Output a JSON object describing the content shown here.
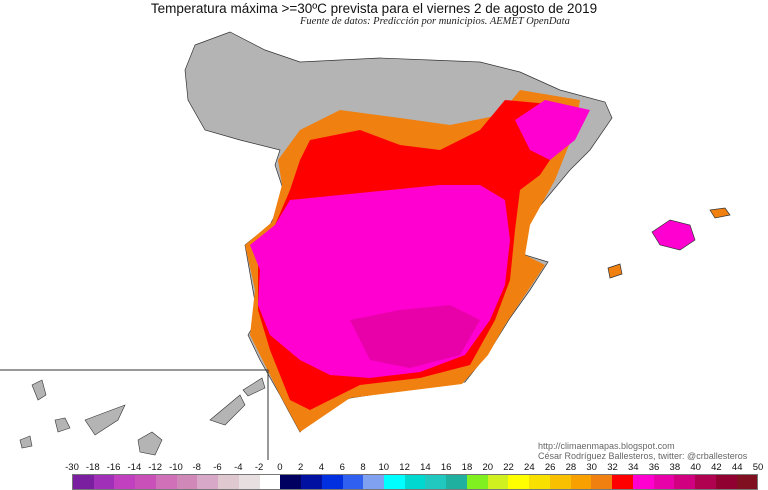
{
  "title": "Temperatura máxima >=30ºC prevista para el viernes 2 de agosto de 2019",
  "subtitle": "Fuente de datos: Predicción por municipios. AEMET OpenData",
  "credits": {
    "url": "http://climaenmapas.blogspot.com",
    "author": "César Rodríguez Ballesteros, twitter: @crballesteros"
  },
  "legend": {
    "labels": [
      "-30",
      "-18",
      "-16",
      "-14",
      "-12",
      "-10",
      "-8",
      "-6",
      "-4",
      "-2",
      "0",
      "2",
      "4",
      "6",
      "8",
      "10",
      "12",
      "14",
      "16",
      "18",
      "20",
      "22",
      "24",
      "26",
      "28",
      "30",
      "32",
      "34",
      "36",
      "38",
      "40",
      "42",
      "44",
      "50"
    ],
    "colors": [
      "#7a1fa0",
      "#a030b8",
      "#c040c0",
      "#c850b8",
      "#d070b8",
      "#d088b8",
      "#d8a8c8",
      "#e0c8d0",
      "#e8e0e0",
      "#ffffff",
      "#000060",
      "#0010a0",
      "#0030e0",
      "#3060f0",
      "#80a0f0",
      "#00ffff",
      "#00d8d0",
      "#20c8c0",
      "#20b0a0",
      "#80f020",
      "#d0f020",
      "#ffff00",
      "#f8e000",
      "#f8c000",
      "#f8a000",
      "#f08010",
      "#ff0000",
      "#ff00d0",
      "#e800a8",
      "#d00080",
      "#b00050",
      "#900030",
      "#801020"
    ]
  },
  "map_colors": {
    "below_threshold": "#b4b4b4",
    "t30_32": "#f08010",
    "t32_34": "#ff0000",
    "t34_36": "#ff00d0",
    "t36_38": "#e800a8"
  }
}
